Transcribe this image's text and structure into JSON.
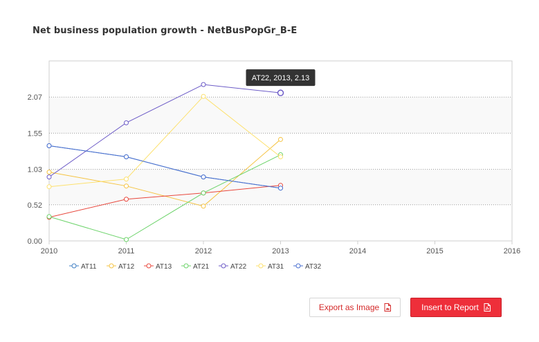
{
  "page": {
    "title": "Net business population growth - NetBusPopGr_B-E"
  },
  "buttons": {
    "export_label": "Export as Image",
    "insert_label": "Insert to Report"
  },
  "tooltip": {
    "text": "AT22, 2013, 2.13",
    "series": "AT22",
    "x": 2013,
    "y": 2.13
  },
  "chart_data": {
    "type": "line",
    "x": [
      2010,
      2011,
      2012,
      2013
    ],
    "xlim": [
      2010,
      2016
    ],
    "x_ticks": [
      "2010",
      "2011",
      "2012",
      "2013",
      "2014",
      "2015",
      "2016"
    ],
    "ylim": [
      0,
      2.59
    ],
    "y_ticks": [
      "0.00",
      "0.52",
      "1.03",
      "1.55",
      "2.07"
    ],
    "y_tick_values": [
      0,
      0.52,
      1.03,
      1.55,
      2.07
    ],
    "grid": true,
    "legend": "bottom-left",
    "series": [
      {
        "name": "AT11",
        "color": "#3f7fc4",
        "values": [
          1.37,
          1.21,
          0.92,
          0.76
        ]
      },
      {
        "name": "AT12",
        "color": "#f5c341",
        "values": [
          0.99,
          0.79,
          0.5,
          1.46
        ]
      },
      {
        "name": "AT13",
        "color": "#e8473c",
        "values": [
          0.34,
          0.6,
          0.69,
          0.8
        ]
      },
      {
        "name": "AT21",
        "color": "#6cd36a",
        "values": [
          0.35,
          0.02,
          0.69,
          1.24
        ]
      },
      {
        "name": "AT22",
        "color": "#6c5bc7",
        "values": [
          0.92,
          1.7,
          2.25,
          2.13
        ]
      },
      {
        "name": "AT31",
        "color": "#fde16e",
        "values": [
          0.78,
          0.89,
          2.08,
          1.21
        ]
      },
      {
        "name": "AT32",
        "color": "#4a6fd0",
        "values": [
          1.37,
          1.21,
          0.92,
          0.76
        ]
      }
    ]
  }
}
